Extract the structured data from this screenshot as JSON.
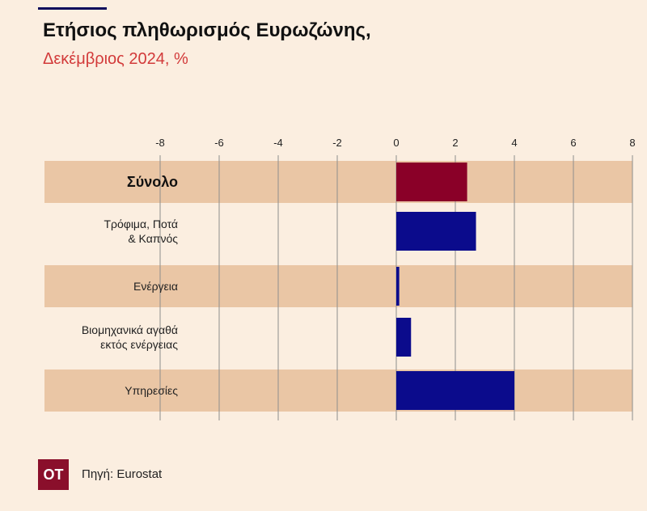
{
  "header": {
    "title": "Ετήσιος πληθωρισμός Ευρωζώνης,",
    "subtitle": "Δεκέμβριος 2024, %"
  },
  "footer": {
    "logo_text": "OT",
    "source": "Πηγή: Eurostat"
  },
  "colors": {
    "background": "#fbeee0",
    "row_band": "#eac6a5",
    "total_bar": "#8a0028",
    "component_bar": "#0b0b8c",
    "accent_red": "#d23a3a"
  },
  "chart_data": {
    "type": "bar",
    "orientation": "horizontal",
    "categories": [
      [
        "Σύνολο"
      ],
      [
        "Τρόφιμα, Ποτά",
        "& Καπνός"
      ],
      [
        "Ενέργεια"
      ],
      [
        "Βιομηχανικά αγαθά",
        "εκτός ενέργειας"
      ],
      [
        "Υπηρεσίες"
      ]
    ],
    "values": [
      2.4,
      2.7,
      0.1,
      0.5,
      4.0
    ],
    "xlim": [
      -8,
      8
    ],
    "xticks": [
      -8,
      -6,
      -4,
      -2,
      0,
      2,
      4,
      6,
      8
    ],
    "banded_rows": [
      true,
      false,
      true,
      false,
      true
    ],
    "highlight_index": 0,
    "grid": true,
    "xlabel": "",
    "ylabel": ""
  }
}
